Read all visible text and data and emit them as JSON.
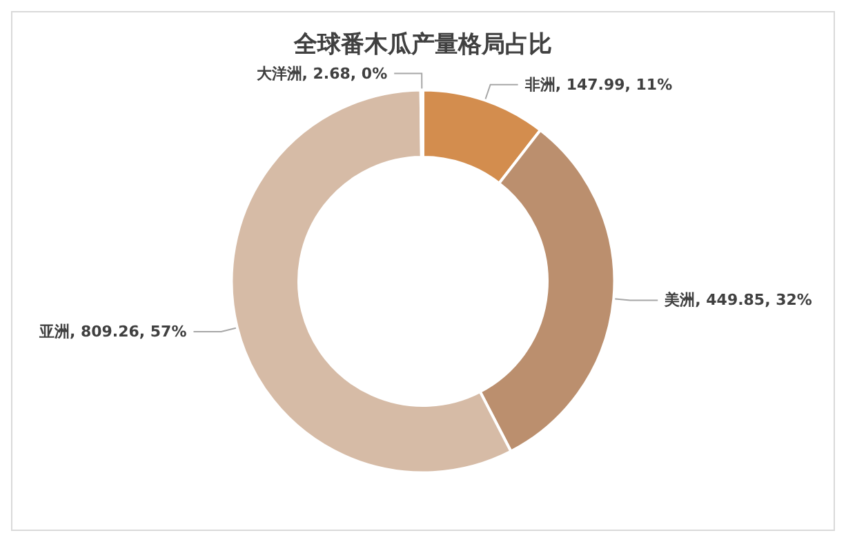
{
  "chart_data": {
    "type": "donut",
    "title": "全球番木瓜产量格局占比",
    "categories": [
      "非洲",
      "美洲",
      "亚洲",
      "大洋洲"
    ],
    "values": [
      147.99,
      449.85,
      809.26,
      2.68
    ],
    "value_labels": [
      "147.99, 11%",
      "449.85, 32%",
      "809.26, 57%",
      "2.68, 0%"
    ],
    "colors": [
      "#d38d4e",
      "#bb8f6e",
      "#d6bba6",
      "#a9a9a9"
    ],
    "legend": false
  }
}
